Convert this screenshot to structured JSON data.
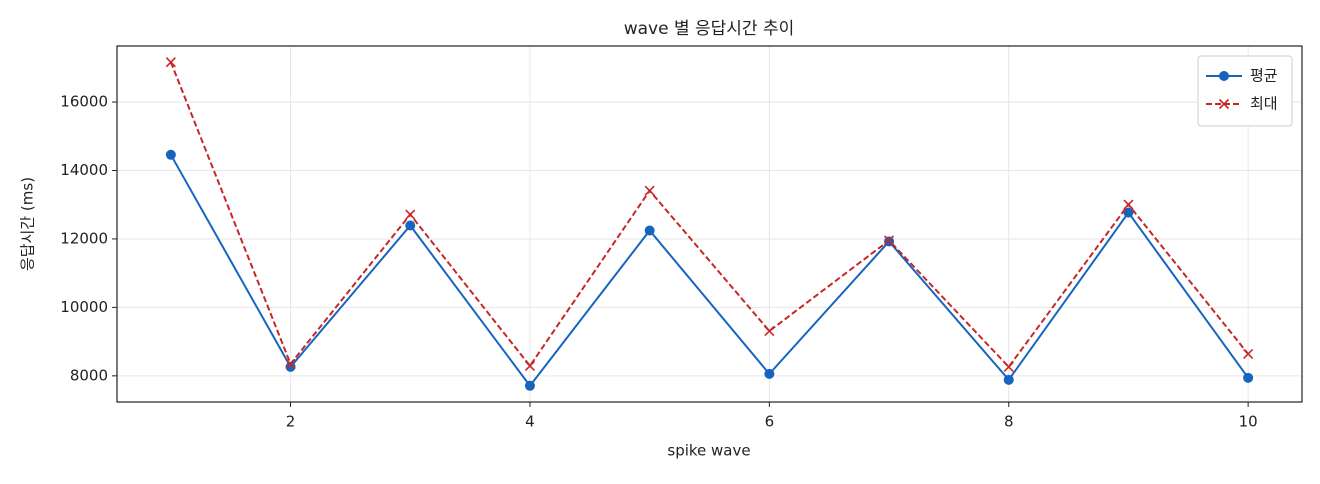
{
  "chart_data": {
    "type": "line",
    "title": "wave 별 응답시간 추이",
    "x_label": "spike wave",
    "y_label": "응답시간 (ms)",
    "x": [
      1,
      2,
      3,
      4,
      5,
      6,
      7,
      8,
      9,
      10
    ],
    "series": [
      {
        "name": "평균",
        "color": "#1565c0",
        "marker": "circle",
        "dash": "solid",
        "values": [
          14458,
          8262,
          12393,
          7709,
          12247,
          8058,
          11927,
          7884,
          12770,
          7942
        ]
      },
      {
        "name": "최대",
        "color": "#c62828",
        "marker": "x",
        "dash": "dashed",
        "values": [
          17164,
          8349,
          12713,
          8291,
          13411,
          9309,
          11956,
          8262,
          13004,
          8640
        ]
      }
    ],
    "xlim": [
      0.55,
      10.45
    ],
    "xticks": [
      2,
      4,
      6,
      8,
      10
    ],
    "ylim": [
      7236,
      17637
    ],
    "yticks": [
      8000,
      10000,
      12000,
      14000,
      16000
    ],
    "grid": true,
    "legend": "upper right"
  }
}
